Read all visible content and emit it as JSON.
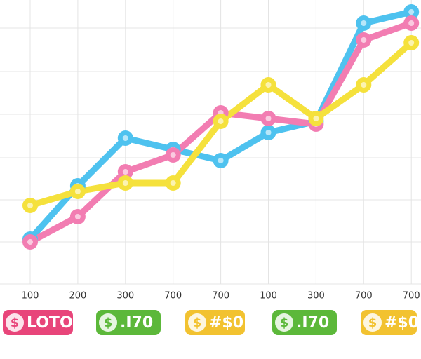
{
  "chart_data": {
    "type": "line",
    "categories": [
      "100",
      "200",
      "300",
      "700",
      "700",
      "100",
      "300",
      "700",
      "700"
    ],
    "ylim": [
      0,
      100
    ],
    "grid": true,
    "series": [
      {
        "name": "blue",
        "color": "#4ec2ef",
        "values": [
          16,
          35,
          52,
          48,
          44,
          54,
          58,
          93,
          97
        ]
      },
      {
        "name": "pink",
        "color": "#f27db2",
        "values": [
          15,
          24,
          40,
          46,
          61,
          59,
          57,
          87,
          93
        ]
      },
      {
        "name": "yellow",
        "color": "#f5e13c",
        "values": [
          28,
          33,
          36,
          36,
          58,
          71,
          59,
          71,
          86
        ]
      }
    ],
    "badges": [
      {
        "icon": "$",
        "text": "LOTO",
        "color": "#e8457a"
      },
      {
        "icon": "$",
        "text": ".I70",
        "color": "#5cb83a"
      },
      {
        "icon": "$",
        "text": "#$0",
        "color": "#f2c230"
      },
      {
        "icon": "$",
        "text": ".I70",
        "color": "#5cb83a"
      },
      {
        "icon": "$",
        "text": "#$0",
        "color": "#f2c230"
      }
    ]
  }
}
